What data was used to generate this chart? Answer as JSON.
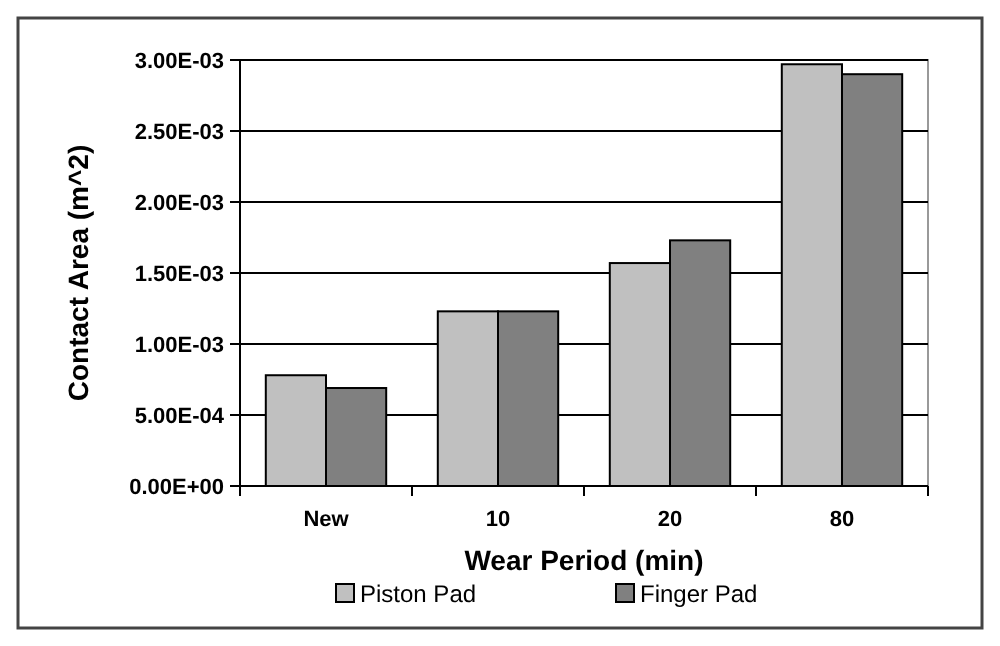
{
  "chart_data": {
    "type": "bar",
    "xlabel": "Wear Period (min)",
    "ylabel": "Contact Area (m^2)",
    "categories": [
      "New",
      "10",
      "20",
      "80"
    ],
    "series": [
      {
        "name": "Piston Pad",
        "color": "#c0c0c0",
        "values": [
          0.00078,
          0.00123,
          0.00157,
          0.00297
        ]
      },
      {
        "name": "Finger Pad",
        "color": "#808080",
        "values": [
          0.00069,
          0.00123,
          0.00173,
          0.0029
        ]
      }
    ],
    "ylim": [
      0,
      0.003
    ],
    "yticks": [
      {
        "value": 0,
        "label": "0.00E+00"
      },
      {
        "value": 0.0005,
        "label": "5.00E-04"
      },
      {
        "value": 0.001,
        "label": "1.00E-03"
      },
      {
        "value": 0.0015,
        "label": "1.50E-03"
      },
      {
        "value": 0.002,
        "label": "2.00E-03"
      },
      {
        "value": 0.0025,
        "label": "2.50E-03"
      },
      {
        "value": 0.003,
        "label": "3.00E-03"
      }
    ],
    "grid": "y",
    "legend": "bottom"
  }
}
